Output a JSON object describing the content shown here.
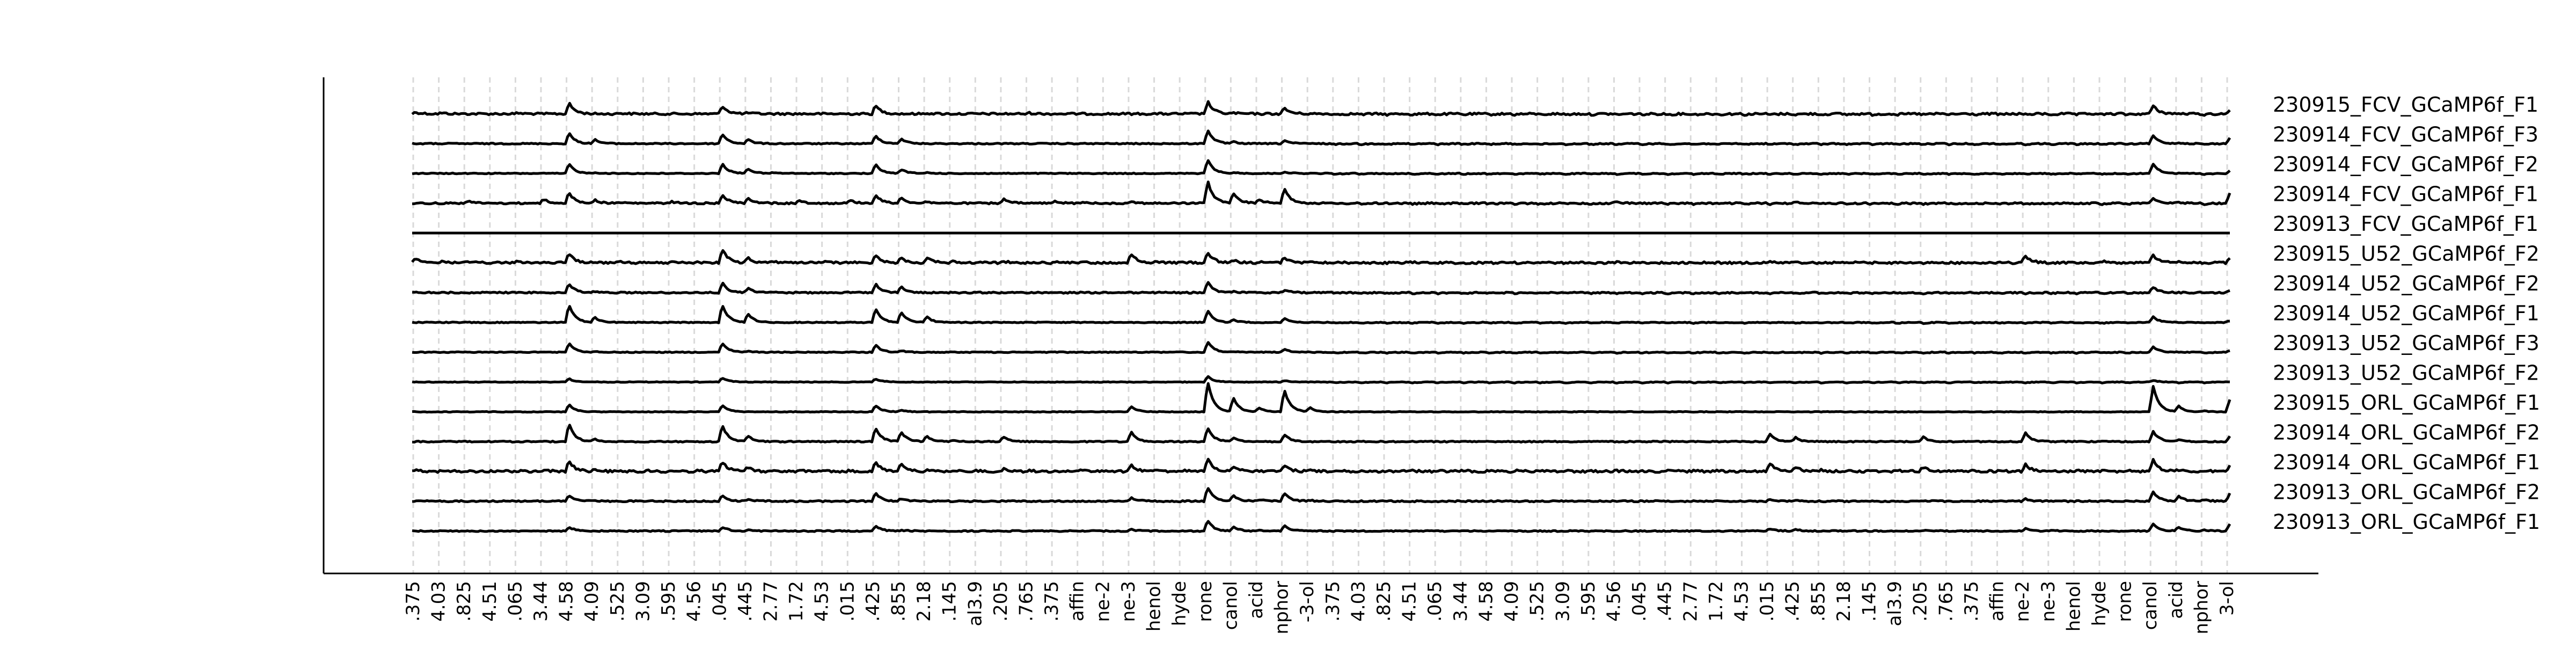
{
  "chart_data": {
    "type": "line",
    "title": "",
    "xlabel": "",
    "ylabel": "",
    "grid": false,
    "legend": "none",
    "colors": {
      "trace": "#000000",
      "stimulus_marker": "#d9d9d9",
      "axis": "#000000"
    },
    "x_tick_labels": [
      ".375",
      "4.03",
      ".825",
      "4.51",
      ".065",
      "3.44",
      "4.58",
      "4.09",
      ".525",
      "3.09",
      ".595",
      "4.56",
      ".045",
      ".445",
      "2.77",
      "1.72",
      "4.53",
      ".015",
      ".425",
      ".855",
      "2.18",
      ".145",
      "al3.9",
      ".205",
      ".765",
      ".375",
      "affin",
      "ne-2",
      "ne-3",
      "henol",
      "hyde",
      "rone",
      "canol",
      "acid",
      "nphor",
      "-3-ol",
      ".375",
      "4.03",
      ".825",
      "4.51",
      ".065",
      "3.44",
      "4.58",
      "4.09",
      ".525",
      "3.09",
      ".595",
      "4.56",
      ".045",
      ".445",
      "2.77",
      "1.72",
      "4.53",
      ".015",
      ".425",
      ".855",
      "2.18",
      ".145",
      "al3.9",
      ".205",
      ".765",
      ".375",
      "affin",
      "ne-2",
      "ne-3",
      "henol",
      "hyde",
      "rone",
      "canol",
      "acid",
      "nphor",
      "3-ol"
    ],
    "series": [
      {
        "name": "230915_FCV_GCaMP6f_F1",
        "noise": 0.9,
        "values": [
          0.5,
          0.4,
          0.3,
          0.3,
          0.4,
          0.3,
          1.6,
          0.3,
          0.4,
          0.3,
          0.3,
          0.3,
          1.3,
          0.4,
          0.3,
          0.3,
          0.3,
          0.3,
          1.3,
          0.3,
          0.4,
          0.3,
          0.3,
          0.3,
          0.4,
          0.3,
          0.3,
          0.3,
          0.3,
          0.3,
          0.3,
          1.8,
          0.4,
          0.3,
          1.0,
          0.3,
          0.2,
          0.2,
          0.2,
          0.2,
          0.2,
          0.2,
          0.2,
          0.2,
          0.2,
          0.2,
          0.2,
          0.2,
          0.2,
          0.2,
          0.2,
          0.2,
          0.2,
          0.2,
          0.2,
          0.2,
          0.2,
          0.2,
          0.2,
          0.2,
          0.2,
          0.2,
          0.2,
          0.2,
          0.2,
          0.2,
          0.2,
          0.2,
          1.3,
          0.3,
          0.2,
          0.8
        ]
      },
      {
        "name": "230914_FCV_GCaMP6f_F3",
        "noise": 0.5,
        "values": [
          0.3,
          0.3,
          0.3,
          0.3,
          0.3,
          0.3,
          1.6,
          0.8,
          0.3,
          0.3,
          0.3,
          0.3,
          1.5,
          0.8,
          0.3,
          0.3,
          0.3,
          0.3,
          1.3,
          0.9,
          0.3,
          0.3,
          0.3,
          0.3,
          0.3,
          0.3,
          0.3,
          0.3,
          0.3,
          0.3,
          0.3,
          2.0,
          0.5,
          0.3,
          0.7,
          0.3,
          0.2,
          0.2,
          0.2,
          0.2,
          0.2,
          0.2,
          0.2,
          0.2,
          0.2,
          0.2,
          0.2,
          0.2,
          0.2,
          0.2,
          0.2,
          0.2,
          0.2,
          0.2,
          0.2,
          0.2,
          0.2,
          0.2,
          0.2,
          0.2,
          0.2,
          0.2,
          0.2,
          0.2,
          0.2,
          0.2,
          0.2,
          0.2,
          1.3,
          0.4,
          0.2,
          1.0
        ]
      },
      {
        "name": "230914_FCV_GCaMP6f_F2",
        "noise": 0.4,
        "values": [
          0.3,
          0.3,
          0.3,
          0.3,
          0.3,
          0.3,
          1.5,
          0.4,
          0.3,
          0.3,
          0.3,
          0.3,
          1.5,
          0.9,
          0.4,
          0.3,
          0.3,
          0.3,
          1.4,
          0.8,
          0.4,
          0.3,
          0.3,
          0.3,
          0.3,
          0.3,
          0.3,
          0.3,
          0.3,
          0.3,
          0.3,
          2.0,
          0.4,
          0.3,
          0.5,
          0.3,
          0.2,
          0.2,
          0.2,
          0.2,
          0.2,
          0.2,
          0.2,
          0.2,
          0.2,
          0.2,
          0.2,
          0.2,
          0.2,
          0.2,
          0.2,
          0.2,
          0.2,
          0.2,
          0.2,
          0.2,
          0.2,
          0.2,
          0.2,
          0.2,
          0.2,
          0.2,
          0.2,
          0.2,
          0.2,
          0.2,
          0.2,
          0.2,
          1.5,
          0.3,
          0.2,
          0.6
        ]
      },
      {
        "name": "230914_FCV_GCaMP6f_F1",
        "noise": 0.7,
        "values": [
          0.3,
          0.3,
          0.6,
          0.3,
          0.3,
          0.8,
          1.6,
          0.7,
          0.4,
          0.3,
          0.5,
          0.3,
          1.4,
          1.0,
          0.3,
          0.6,
          0.3,
          0.7,
          1.3,
          1.0,
          0.5,
          0.3,
          0.3,
          0.8,
          0.3,
          0.5,
          0.4,
          0.3,
          0.5,
          0.3,
          0.3,
          3.0,
          1.5,
          0.8,
          2.2,
          0.3,
          0.2,
          0.2,
          0.3,
          0.2,
          0.2,
          0.2,
          0.2,
          0.2,
          0.2,
          0.2,
          0.2,
          0.5,
          0.3,
          0.2,
          0.2,
          0.2,
          0.2,
          0.2,
          0.5,
          0.2,
          0.2,
          0.2,
          0.2,
          0.2,
          0.2,
          0.2,
          0.2,
          0.2,
          0.2,
          0.2,
          0.2,
          0.2,
          1.0,
          0.4,
          0.2,
          1.5
        ]
      },
      {
        "name": "230913_FCV_GCaMP6f_F1",
        "noise": 0.0,
        "values": [
          0.3,
          0.3,
          0.3,
          0.3,
          0.3,
          0.3,
          0.3,
          0.3,
          0.3,
          0.3,
          0.3,
          0.3,
          0.3,
          0.3,
          0.3,
          0.3,
          0.3,
          0.3,
          0.3,
          0.3,
          0.3,
          0.3,
          0.3,
          0.3,
          0.3,
          0.3,
          0.3,
          0.3,
          0.3,
          0.3,
          0.3,
          0.3,
          0.3,
          0.3,
          0.3,
          0.3,
          0.3,
          0.3,
          0.3,
          0.3,
          0.3,
          0.3,
          0.3,
          0.3,
          0.3,
          0.3,
          0.3,
          0.3,
          0.3,
          0.3,
          0.3,
          0.3,
          0.3,
          0.3,
          0.3,
          0.3,
          0.3,
          0.3,
          0.3,
          0.3,
          0.3,
          0.3,
          0.3,
          0.3,
          0.3,
          0.3,
          0.3,
          0.3,
          0.3,
          0.3,
          0.3,
          0.3
        ]
      },
      {
        "name": "230915_U52_GCaMP6f_F2",
        "noise": 0.9,
        "values": [
          0.8,
          0.5,
          0.4,
          0.3,
          0.5,
          0.4,
          1.5,
          0.4,
          0.4,
          0.3,
          0.4,
          0.4,
          2.0,
          0.9,
          0.5,
          0.4,
          0.5,
          0.4,
          1.3,
          0.9,
          0.9,
          0.5,
          0.4,
          0.5,
          0.4,
          0.4,
          0.4,
          0.3,
          1.4,
          0.4,
          0.4,
          1.6,
          0.6,
          0.4,
          1.0,
          0.5,
          0.4,
          0.3,
          0.3,
          0.4,
          0.3,
          0.3,
          0.3,
          0.3,
          0.3,
          0.3,
          0.3,
          0.4,
          0.4,
          0.3,
          0.4,
          0.3,
          0.3,
          0.4,
          0.4,
          0.3,
          0.4,
          0.3,
          0.3,
          0.3,
          0.3,
          0.3,
          0.3,
          1.2,
          0.3,
          0.3,
          0.5,
          0.3,
          1.3,
          0.5,
          0.3,
          1.0
        ]
      },
      {
        "name": "230914_U52_GCaMP6f_F2",
        "noise": 0.6,
        "values": [
          0.3,
          0.3,
          0.3,
          0.3,
          0.3,
          0.3,
          1.4,
          0.4,
          0.3,
          0.3,
          0.3,
          0.3,
          1.5,
          0.8,
          0.3,
          0.3,
          0.3,
          0.3,
          1.4,
          1.0,
          0.3,
          0.3,
          0.3,
          0.3,
          0.3,
          0.3,
          0.3,
          0.3,
          0.3,
          0.3,
          0.3,
          1.6,
          0.4,
          0.3,
          0.6,
          0.3,
          0.2,
          0.2,
          0.2,
          0.2,
          0.2,
          0.2,
          0.2,
          0.2,
          0.2,
          0.2,
          0.2,
          0.2,
          0.2,
          0.2,
          0.2,
          0.2,
          0.2,
          0.2,
          0.2,
          0.2,
          0.2,
          0.2,
          0.2,
          0.2,
          0.2,
          0.2,
          0.2,
          0.2,
          0.2,
          0.2,
          0.2,
          0.2,
          1.0,
          0.3,
          0.2,
          0.5
        ]
      },
      {
        "name": "230914_U52_GCaMP6f_F1",
        "noise": 0.4,
        "values": [
          0.3,
          0.3,
          0.3,
          0.3,
          0.3,
          0.3,
          2.5,
          0.9,
          0.3,
          0.3,
          0.3,
          0.3,
          2.5,
          1.4,
          0.3,
          0.3,
          0.3,
          0.3,
          2.0,
          1.6,
          1.0,
          0.3,
          0.3,
          0.3,
          0.3,
          0.3,
          0.3,
          0.3,
          0.3,
          0.3,
          0.3,
          1.8,
          0.6,
          0.3,
          0.8,
          0.3,
          0.2,
          0.2,
          0.2,
          0.2,
          0.2,
          0.2,
          0.2,
          0.2,
          0.2,
          0.2,
          0.2,
          0.2,
          0.2,
          0.2,
          0.2,
          0.2,
          0.2,
          0.2,
          0.2,
          0.2,
          0.2,
          0.2,
          0.2,
          0.2,
          0.2,
          0.2,
          0.2,
          0.2,
          0.2,
          0.2,
          0.2,
          0.2,
          1.0,
          0.3,
          0.2,
          0.5
        ]
      },
      {
        "name": "230913_U52_GCaMP6f_F3",
        "noise": 0.4,
        "values": [
          0.3,
          0.3,
          0.3,
          0.3,
          0.3,
          0.3,
          1.4,
          0.4,
          0.3,
          0.3,
          0.3,
          0.3,
          1.4,
          0.4,
          0.3,
          0.3,
          0.3,
          0.3,
          1.2,
          0.5,
          0.3,
          0.3,
          0.3,
          0.3,
          0.3,
          0.3,
          0.3,
          0.3,
          0.3,
          0.3,
          0.3,
          1.6,
          0.4,
          0.3,
          0.7,
          0.3,
          0.2,
          0.2,
          0.2,
          0.2,
          0.2,
          0.2,
          0.2,
          0.2,
          0.2,
          0.2,
          0.2,
          0.2,
          0.2,
          0.2,
          0.2,
          0.2,
          0.2,
          0.2,
          0.2,
          0.2,
          0.2,
          0.2,
          0.2,
          0.2,
          0.2,
          0.2,
          0.2,
          0.2,
          0.2,
          0.2,
          0.2,
          0.2,
          1.0,
          0.3,
          0.2,
          0.5
        ]
      },
      {
        "name": "230913_U52_GCaMP6f_F2",
        "noise": 0.3,
        "values": [
          0.3,
          0.3,
          0.3,
          0.3,
          0.3,
          0.3,
          0.7,
          0.3,
          0.3,
          0.3,
          0.3,
          0.3,
          0.8,
          0.3,
          0.3,
          0.3,
          0.3,
          0.3,
          0.7,
          0.3,
          0.3,
          0.3,
          0.3,
          0.3,
          0.3,
          0.3,
          0.3,
          0.3,
          0.3,
          0.3,
          0.3,
          1.0,
          0.3,
          0.3,
          0.5,
          0.3,
          0.2,
          0.2,
          0.2,
          0.2,
          0.2,
          0.2,
          0.2,
          0.2,
          0.2,
          0.2,
          0.2,
          0.2,
          0.2,
          0.2,
          0.2,
          0.2,
          0.2,
          0.2,
          0.2,
          0.2,
          0.2,
          0.2,
          0.2,
          0.2,
          0.2,
          0.2,
          0.2,
          0.2,
          0.2,
          0.2,
          0.2,
          0.2,
          0.5,
          0.2,
          0.2,
          0.3
        ]
      },
      {
        "name": "230915_ORL_GCaMP6f_F1",
        "noise": 0.3,
        "values": [
          0.3,
          0.3,
          0.3,
          0.3,
          0.3,
          0.3,
          1.2,
          0.3,
          0.3,
          0.3,
          0.3,
          0.3,
          1.1,
          0.3,
          0.3,
          0.3,
          0.3,
          0.3,
          1.1,
          0.5,
          0.3,
          0.3,
          0.3,
          0.3,
          0.3,
          0.3,
          0.3,
          0.3,
          1.0,
          0.3,
          0.3,
          4.0,
          2.0,
          0.8,
          3.0,
          0.8,
          0.3,
          0.3,
          0.3,
          0.3,
          0.3,
          0.3,
          0.3,
          0.3,
          0.3,
          0.3,
          0.3,
          0.3,
          0.3,
          0.3,
          0.3,
          0.3,
          0.3,
          0.3,
          0.3,
          0.3,
          0.3,
          0.3,
          0.3,
          0.3,
          0.3,
          0.3,
          0.3,
          0.3,
          0.3,
          0.3,
          0.3,
          0.3,
          3.5,
          1.0,
          0.4,
          1.8
        ]
      },
      {
        "name": "230914_ORL_GCaMP6f_F2",
        "noise": 0.5,
        "values": [
          0.3,
          0.3,
          0.3,
          0.3,
          0.3,
          0.3,
          2.5,
          0.6,
          0.3,
          0.3,
          0.3,
          0.3,
          2.3,
          1.0,
          0.3,
          0.3,
          0.3,
          0.3,
          2.0,
          1.5,
          1.0,
          0.5,
          0.3,
          0.9,
          0.3,
          0.3,
          0.3,
          0.3,
          1.5,
          0.3,
          0.3,
          2.0,
          0.8,
          0.3,
          1.2,
          0.3,
          0.3,
          0.3,
          0.3,
          0.3,
          0.3,
          0.3,
          0.3,
          0.3,
          0.3,
          0.3,
          0.3,
          0.3,
          0.3,
          0.3,
          0.3,
          0.3,
          0.3,
          1.2,
          0.8,
          0.3,
          0.3,
          0.3,
          0.3,
          0.9,
          0.3,
          0.3,
          0.3,
          1.4,
          0.3,
          0.3,
          0.3,
          0.3,
          1.6,
          0.5,
          0.3,
          1.0
        ]
      },
      {
        "name": "230914_ORL_GCaMP6f_F1",
        "noise": 1.0,
        "values": [
          0.4,
          0.4,
          0.4,
          0.4,
          0.4,
          0.5,
          1.6,
          0.5,
          0.4,
          0.4,
          0.4,
          0.4,
          1.5,
          0.8,
          0.4,
          0.4,
          0.4,
          0.4,
          1.5,
          1.2,
          0.5,
          0.4,
          0.4,
          0.6,
          0.4,
          0.4,
          0.4,
          0.4,
          1.1,
          0.4,
          0.4,
          1.8,
          0.9,
          0.4,
          1.0,
          0.4,
          0.4,
          0.4,
          0.4,
          0.4,
          0.4,
          0.4,
          0.4,
          0.4,
          0.4,
          0.4,
          0.4,
          0.4,
          0.4,
          0.4,
          0.4,
          0.4,
          0.4,
          1.3,
          0.9,
          0.5,
          0.4,
          0.4,
          0.4,
          0.8,
          0.4,
          0.4,
          0.4,
          1.2,
          0.4,
          0.4,
          0.4,
          0.4,
          1.7,
          0.5,
          0.4,
          1.0
        ]
      },
      {
        "name": "230913_ORL_GCaMP6f_F2",
        "noise": 0.6,
        "values": [
          0.3,
          0.3,
          0.3,
          0.3,
          0.3,
          0.3,
          1.0,
          0.4,
          0.3,
          0.3,
          0.3,
          0.3,
          1.0,
          0.5,
          0.3,
          0.3,
          0.3,
          0.3,
          1.3,
          0.6,
          0.3,
          0.3,
          0.3,
          0.3,
          0.3,
          0.3,
          0.3,
          0.3,
          0.7,
          0.3,
          0.3,
          2.0,
          1.0,
          0.5,
          1.3,
          0.4,
          0.3,
          0.3,
          0.3,
          0.3,
          0.3,
          0.3,
          0.3,
          0.3,
          0.3,
          0.3,
          0.3,
          0.3,
          0.3,
          0.3,
          0.3,
          0.3,
          0.3,
          0.6,
          0.4,
          0.3,
          0.3,
          0.3,
          0.3,
          0.4,
          0.3,
          0.3,
          0.3,
          0.6,
          0.3,
          0.3,
          0.3,
          0.3,
          1.5,
          0.9,
          0.5,
          1.3
        ]
      },
      {
        "name": "230913_ORL_GCaMP6f_F1",
        "noise": 0.5,
        "values": [
          0.3,
          0.3,
          0.3,
          0.3,
          0.3,
          0.3,
          0.8,
          0.3,
          0.3,
          0.3,
          0.3,
          0.3,
          0.8,
          0.4,
          0.3,
          0.3,
          0.3,
          0.3,
          0.9,
          0.4,
          0.3,
          0.3,
          0.3,
          0.3,
          0.3,
          0.3,
          0.3,
          0.3,
          0.5,
          0.3,
          0.3,
          1.6,
          0.8,
          0.4,
          1.0,
          0.3,
          0.3,
          0.3,
          0.3,
          0.3,
          0.3,
          0.3,
          0.3,
          0.3,
          0.3,
          0.3,
          0.3,
          0.3,
          0.3,
          0.3,
          0.3,
          0.3,
          0.3,
          0.6,
          0.5,
          0.3,
          0.3,
          0.3,
          0.3,
          0.4,
          0.3,
          0.3,
          0.3,
          0.6,
          0.4,
          0.3,
          0.3,
          0.3,
          1.2,
          0.8,
          0.4,
          1.2
        ]
      }
    ]
  }
}
